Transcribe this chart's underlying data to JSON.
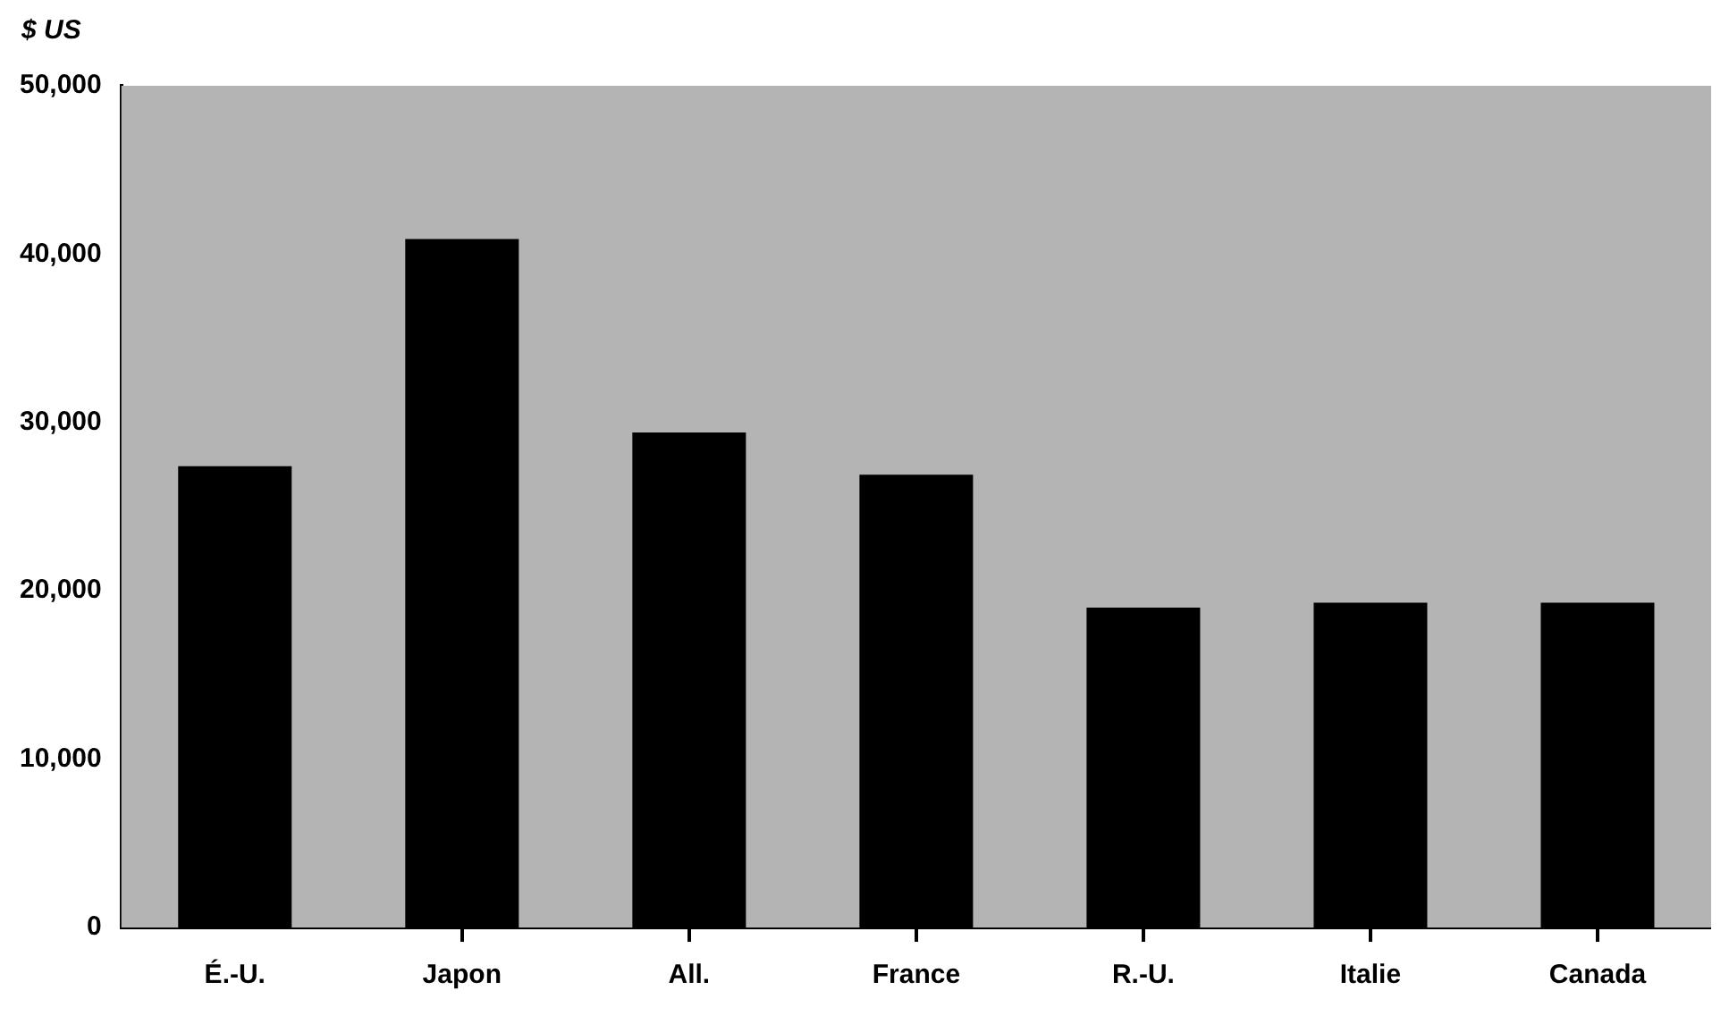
{
  "chart_data": {
    "type": "bar",
    "ylabel": "$ US",
    "categories": [
      "É.-U.",
      "Japon",
      "All.",
      "France",
      "R.-U.",
      "Italie",
      "Canada"
    ],
    "values": [
      27400,
      40900,
      29400,
      26900,
      19000,
      19300,
      19300
    ],
    "color": "#000000",
    "ylim": [
      0,
      50000
    ],
    "yticks": [
      {
        "value": 0,
        "label": "0"
      },
      {
        "value": 10000,
        "label": "10,000"
      },
      {
        "value": 20000,
        "label": "20,000"
      },
      {
        "value": 30000,
        "label": "30,000"
      },
      {
        "value": 40000,
        "label": "40,000"
      },
      {
        "value": 50000,
        "label": "50,000"
      }
    ],
    "grid": false,
    "legend": false
  }
}
